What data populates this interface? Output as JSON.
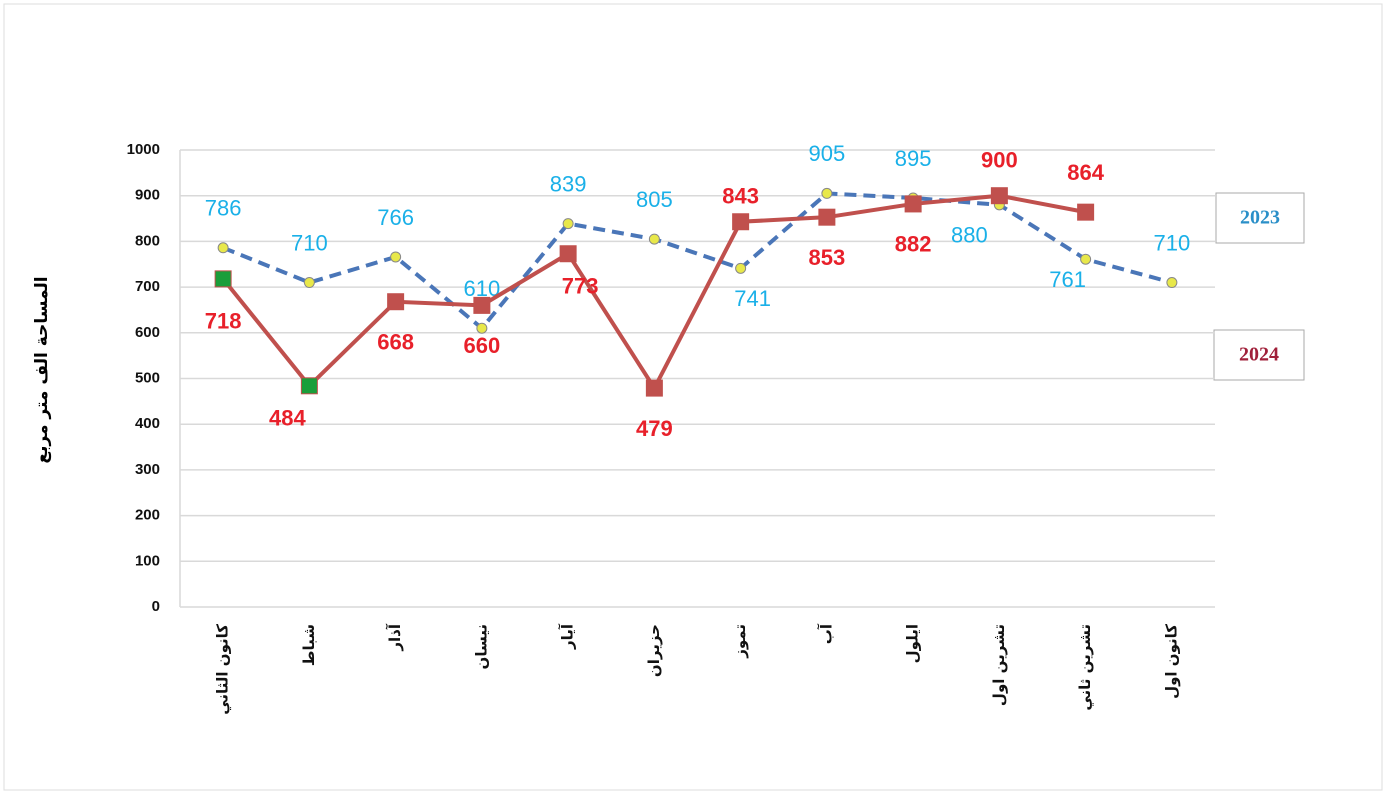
{
  "chart_data": {
    "type": "line",
    "y_label": "المساحة الف متر مربع",
    "categories": [
      "كانون الثاني",
      "شباط",
      "آذار",
      "نيسان",
      "آيار",
      "حزيران",
      "تموز",
      "آب",
      "ايلول",
      "تشرين اول",
      "تشرين ثاني",
      "كانون اول"
    ],
    "series": [
      {
        "name": "2023",
        "color": "#4a76b8",
        "marker_color": "#e8e84a",
        "label_color": "#1ab0e8",
        "dashed": true,
        "values": [
          786,
          710,
          766,
          610,
          839,
          805,
          741,
          905,
          895,
          880,
          761,
          710
        ]
      },
      {
        "name": "2024",
        "color": "#c0504d",
        "marker_colors": [
          "#1a9e3a",
          "#1a9e3a",
          "#c0504d",
          "#c0504d",
          "#c0504d",
          "#c0504d",
          "#c0504d",
          "#c0504d",
          "#c0504d",
          "#c0504d",
          "#c0504d",
          "#c0504d"
        ],
        "label_color": "#e8202a",
        "dashed": false,
        "values": [
          718,
          484,
          668,
          660,
          773,
          479,
          843,
          853,
          882,
          900,
          864,
          null
        ]
      }
    ],
    "ylim": [
      0,
      1000
    ],
    "yticks": [
      0,
      100,
      200,
      300,
      400,
      500,
      600,
      700,
      800,
      900,
      1000
    ],
    "grid": true
  }
}
